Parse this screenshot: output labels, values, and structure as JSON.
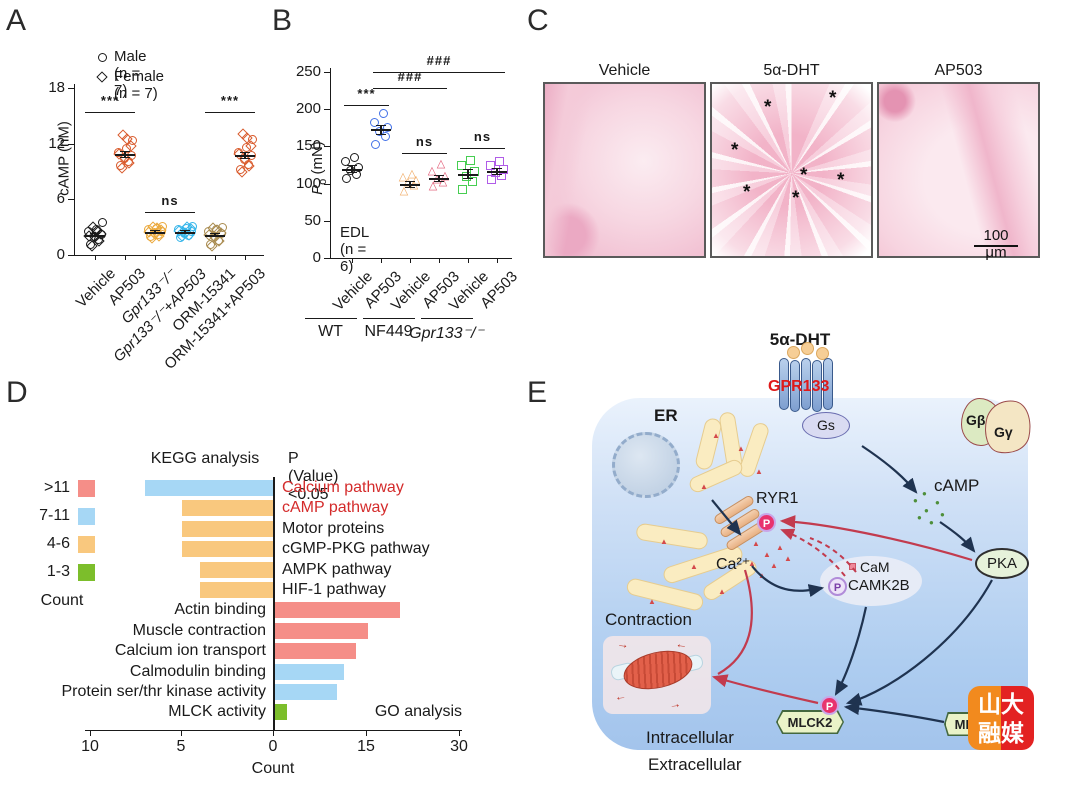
{
  "figure": {
    "panel_labels": {
      "a": "A",
      "b": "B",
      "c": "C",
      "d": "D",
      "e": "E"
    }
  },
  "chart_data": [
    {
      "id": "A",
      "type": "scatter",
      "legend": [
        {
          "marker": "circle",
          "label": "Male (n = 7)"
        },
        {
          "marker": "diamond",
          "label": "Female (n = 7)"
        }
      ],
      "ylabel": "cAMP (nM)",
      "ylim": [
        0,
        18
      ],
      "yticks": [
        0,
        6,
        12,
        18
      ],
      "series": [
        {
          "category": "Vehicle",
          "italic": false,
          "color": "#1a1a1a",
          "male": [
            1.1,
            1.7,
            2.0,
            2.2,
            2.5,
            2.8,
            3.5
          ],
          "female": [
            1.0,
            1.5,
            1.9,
            2.1,
            2.3,
            2.6,
            3.0
          ],
          "mean": 2.2,
          "sem": 0.2
        },
        {
          "category": "AP503",
          "italic": false,
          "color": "#d95b2d",
          "male": [
            9.7,
            10.1,
            10.4,
            10.7,
            11.0,
            11.5,
            12.3
          ],
          "female": [
            9.4,
            9.9,
            10.5,
            10.9,
            11.7,
            12.5,
            12.9
          ],
          "mean": 10.9,
          "sem": 0.3
        },
        {
          "category": "Gpr133⁻/⁻",
          "italic": true,
          "color": "#eba93c",
          "male": [
            2.0,
            2.2,
            2.4,
            2.5,
            2.7,
            2.9,
            3.1
          ],
          "female": [
            1.8,
            2.1,
            2.3,
            2.5,
            2.7,
            2.9,
            3.0
          ],
          "mean": 2.5,
          "sem": 0.15
        },
        {
          "category": "Gpr133⁻/⁻+AP503",
          "italic": true,
          "color": "#35b5ea",
          "male": [
            1.9,
            2.1,
            2.3,
            2.5,
            2.7,
            2.9,
            3.1
          ],
          "female": [
            2.0,
            2.2,
            2.4,
            2.6,
            2.8,
            3.0,
            2.5
          ],
          "mean": 2.5,
          "sem": 0.15
        },
        {
          "category": "ORM-15341",
          "italic": false,
          "color": "#a98b4f",
          "male": [
            1.1,
            1.6,
            2.0,
            2.3,
            2.5,
            2.8,
            3.0
          ],
          "female": [
            1.0,
            1.5,
            1.9,
            2.2,
            2.4,
            2.7,
            2.9
          ],
          "mean": 2.2,
          "sem": 0.2
        },
        {
          "category": "ORM-15341+AP503",
          "italic": false,
          "color": "#d95b2d",
          "male": [
            9.2,
            9.8,
            10.3,
            10.7,
            11.0,
            11.6,
            12.4
          ],
          "female": [
            9.0,
            9.6,
            10.4,
            10.9,
            11.8,
            12.6,
            13.0
          ],
          "mean": 10.8,
          "sem": 0.35
        }
      ],
      "significance": [
        {
          "label": "***",
          "from": 0,
          "to": 1,
          "y": 15.4
        },
        {
          "label": "ns",
          "from": 2,
          "to": 3,
          "y": 4.6
        },
        {
          "label": "***",
          "from": 4,
          "to": 5,
          "y": 15.4
        }
      ]
    },
    {
      "id": "B",
      "type": "scatter",
      "ylabel": {
        "main": "P",
        "sub": "o",
        "unit": " (mN)"
      },
      "ylim": [
        0,
        250
      ],
      "yticks": [
        0,
        50,
        100,
        150,
        200,
        250
      ],
      "annotation": "EDL (n = 6)",
      "group_labels": [
        {
          "text": "WT",
          "italic": false
        },
        {
          "text": "NF449",
          "italic": false
        },
        {
          "text": "Gpr133⁻/⁻",
          "italic": true
        }
      ],
      "series": [
        {
          "category": "Vehicle",
          "shape": "circle",
          "color": "#1a1a1a",
          "values": [
            107,
            112,
            117,
            122,
            130,
            135
          ],
          "mean": 120,
          "sem": 5
        },
        {
          "category": "AP503",
          "shape": "circle",
          "color": "#4472e8",
          "values": [
            152,
            163,
            170,
            175,
            182,
            194
          ],
          "mean": 173,
          "sem": 6
        },
        {
          "category": "Vehicle",
          "shape": "triangle",
          "color": "#f0a860",
          "values": [
            87,
            95,
            99,
            102,
            106,
            110
          ],
          "mean": 100,
          "sem": 4
        },
        {
          "category": "AP503",
          "shape": "triangle",
          "color": "#e05570",
          "values": [
            94,
            100,
            104,
            108,
            114,
            124
          ],
          "mean": 107,
          "sem": 4
        },
        {
          "category": "Vehicle",
          "shape": "square",
          "color": "#46ce51",
          "values": [
            92,
            103,
            110,
            116,
            124,
            131
          ],
          "mean": 113,
          "sem": 6
        },
        {
          "category": "AP503",
          "shape": "square",
          "color": "#b05ce8",
          "values": [
            105,
            111,
            115,
            119,
            124,
            130
          ],
          "mean": 117,
          "sem": 4
        }
      ],
      "significance": [
        {
          "label": "***",
          "from": 0,
          "to": 1,
          "y": 205
        },
        {
          "label": "###",
          "from": 1,
          "to": 3,
          "y": 228
        },
        {
          "label": "###",
          "from": 1,
          "to": 5,
          "y": 250
        },
        {
          "label": "ns",
          "from": 2,
          "to": 3,
          "y": 141
        },
        {
          "label": "ns",
          "from": 4,
          "to": 5,
          "y": 148
        }
      ]
    },
    {
      "id": "D",
      "type": "bar",
      "header_left": "KEGG analysis",
      "header_right": "P (Value) <0.05",
      "go_caption": "GO analysis",
      "xlabel": "Count",
      "legend": [
        {
          "label": ">11",
          "color": "#f58e88"
        },
        {
          "label": "7-11",
          "color": "#a6d7f5"
        },
        {
          "label": "4-6",
          "color": "#f9c87e"
        },
        {
          "label": "1-3",
          "color": "#7cbe2b"
        }
      ],
      "legend_caption": "Count",
      "left_axis_ticks": [
        10,
        5,
        0
      ],
      "right_axis_ticks": [
        15,
        30
      ],
      "kegg": [
        {
          "label": "Calcium pathway",
          "value": 7,
          "color": "#a6d7f5",
          "label_color": "#d42b2b"
        },
        {
          "label": "cAMP pathway",
          "value": 5,
          "color": "#f9c87e",
          "label_color": "#d42b2b"
        },
        {
          "label": "Motor proteins",
          "value": 5,
          "color": "#f9c87e",
          "label_color": "#1a1a1a"
        },
        {
          "label": "cGMP-PKG pathway",
          "value": 5,
          "color": "#f9c87e",
          "label_color": "#1a1a1a"
        },
        {
          "label": "AMPK pathway",
          "value": 4,
          "color": "#f9c87e",
          "label_color": "#1a1a1a"
        },
        {
          "label": "HIF-1 pathway",
          "value": 4,
          "color": "#f9c87e",
          "label_color": "#1a1a1a"
        }
      ],
      "go": [
        {
          "label": "Actin binding",
          "value": 20,
          "color": "#f58e88"
        },
        {
          "label": "Muscle contraction",
          "value": 15,
          "color": "#f58e88"
        },
        {
          "label": "Calcium ion transport",
          "value": 13,
          "color": "#f58e88"
        },
        {
          "label": "Calmodulin binding",
          "value": 11,
          "color": "#a6d7f5"
        },
        {
          "label": "Protein ser/thr kinase activity",
          "value": 10,
          "color": "#a6d7f5"
        },
        {
          "label": "MLCK activity",
          "value": 2,
          "color": "#7cbe2b"
        }
      ]
    }
  ],
  "panelC": {
    "titles": [
      "Vehicle",
      "5α-DHT",
      "AP503"
    ],
    "scale_bar": "100 μm",
    "asterisk": "*",
    "asterisk_count": 7
  },
  "panelE": {
    "labels": {
      "ligand": "5α-DHT",
      "receptor": "GPR133",
      "gs": "Gs",
      "gbeta": "Gβ",
      "ggamma": "Gγ",
      "er": "ER",
      "ryr1": "RYR1",
      "camp": "cAMP",
      "pka": "PKA",
      "ca": "Ca²⁺",
      "cam": "CaM",
      "camk2b": "CAMK2B",
      "contraction": "Contraction",
      "mlck2": "MLCK2",
      "ml_partial": "ML",
      "intracellular": "Intracellular",
      "extracellular": "Extracellular",
      "p": "P"
    },
    "logo": {
      "line1": "山大",
      "line2": "融媒"
    },
    "colors": {
      "receptor_label": "#e01a1a",
      "arrow_black": "#1f3350",
      "arrow_red": "#c23b4e"
    }
  }
}
